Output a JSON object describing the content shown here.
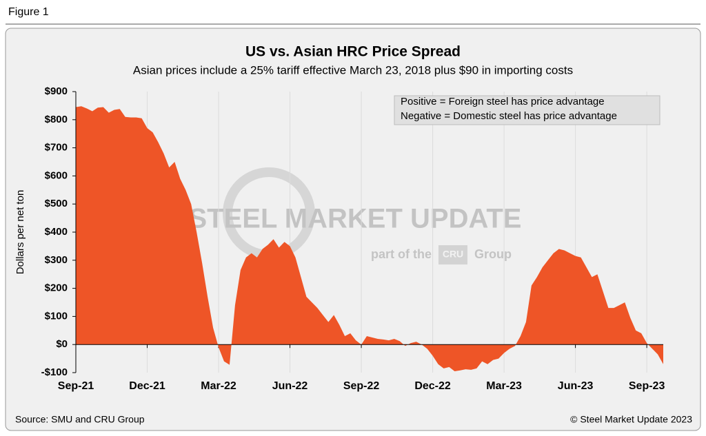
{
  "figure_label": "Figure 1",
  "chart_data": {
    "type": "area",
    "title": "US vs. Asian HRC Price Spread",
    "subtitle": "Asian prices include a 25% tariff effective March 23, 2018 plus $90 in importing costs",
    "y_label": "Dollars per net ton",
    "annotations": [
      "Positive = Foreign steel has price advantage",
      "Negative = Domestic steel has price advantage"
    ],
    "watermark": [
      "STEEL MARKET UPDATE",
      "part of the",
      "CRU",
      "Group"
    ],
    "source": "Source: SMU and CRU Group",
    "copyright": "© Steel Market Update 2023",
    "color": "#ee5527",
    "grid": true,
    "values": [
      845,
      848,
      840,
      830,
      843,
      845,
      825,
      835,
      838,
      810,
      808,
      808,
      805,
      770,
      755,
      720,
      680,
      630,
      650,
      590,
      550,
      500,
      400,
      290,
      170,
      60,
      -10,
      -60,
      -72,
      140,
      265,
      310,
      325,
      310,
      340,
      355,
      375,
      345,
      365,
      350,
      310,
      240,
      170,
      150,
      130,
      105,
      80,
      105,
      70,
      30,
      40,
      15,
      0,
      30,
      25,
      20,
      18,
      15,
      20,
      12,
      -5,
      5,
      10,
      0,
      -15,
      -40,
      -70,
      -85,
      -80,
      -95,
      -92,
      -88,
      -90,
      -85,
      -60,
      -70,
      -55,
      -50,
      -30,
      -15,
      -5,
      30,
      80,
      210,
      240,
      275,
      300,
      325,
      340,
      335,
      325,
      315,
      310,
      275,
      240,
      250,
      190,
      130,
      130,
      140,
      150,
      95,
      50,
      40,
      5,
      -15,
      -35,
      -70
    ],
    "xlim": [
      0,
      107
    ],
    "xticks": [
      {
        "value": 0,
        "label": "Sep-21"
      },
      {
        "value": 13,
        "label": "Dec-21"
      },
      {
        "value": 26,
        "label": "Mar-22"
      },
      {
        "value": 39,
        "label": "Jun-22"
      },
      {
        "value": 52,
        "label": "Sep-22"
      },
      {
        "value": 65,
        "label": "Dec-22"
      },
      {
        "value": 78,
        "label": "Mar-23"
      },
      {
        "value": 91,
        "label": "Jun-23"
      },
      {
        "value": 104,
        "label": "Sep-23"
      }
    ],
    "ylim": [
      -100,
      900
    ],
    "yticks": [
      {
        "value": -100,
        "label": "-$100"
      },
      {
        "value": 0,
        "label": "$0"
      },
      {
        "value": 100,
        "label": "$100"
      },
      {
        "value": 200,
        "label": "$200"
      },
      {
        "value": 300,
        "label": "$300"
      },
      {
        "value": 400,
        "label": "$400"
      },
      {
        "value": 500,
        "label": "$500"
      },
      {
        "value": 600,
        "label": "$600"
      },
      {
        "value": 700,
        "label": "$700"
      },
      {
        "value": 800,
        "label": "$800"
      },
      {
        "value": 900,
        "label": "$900"
      }
    ]
  }
}
